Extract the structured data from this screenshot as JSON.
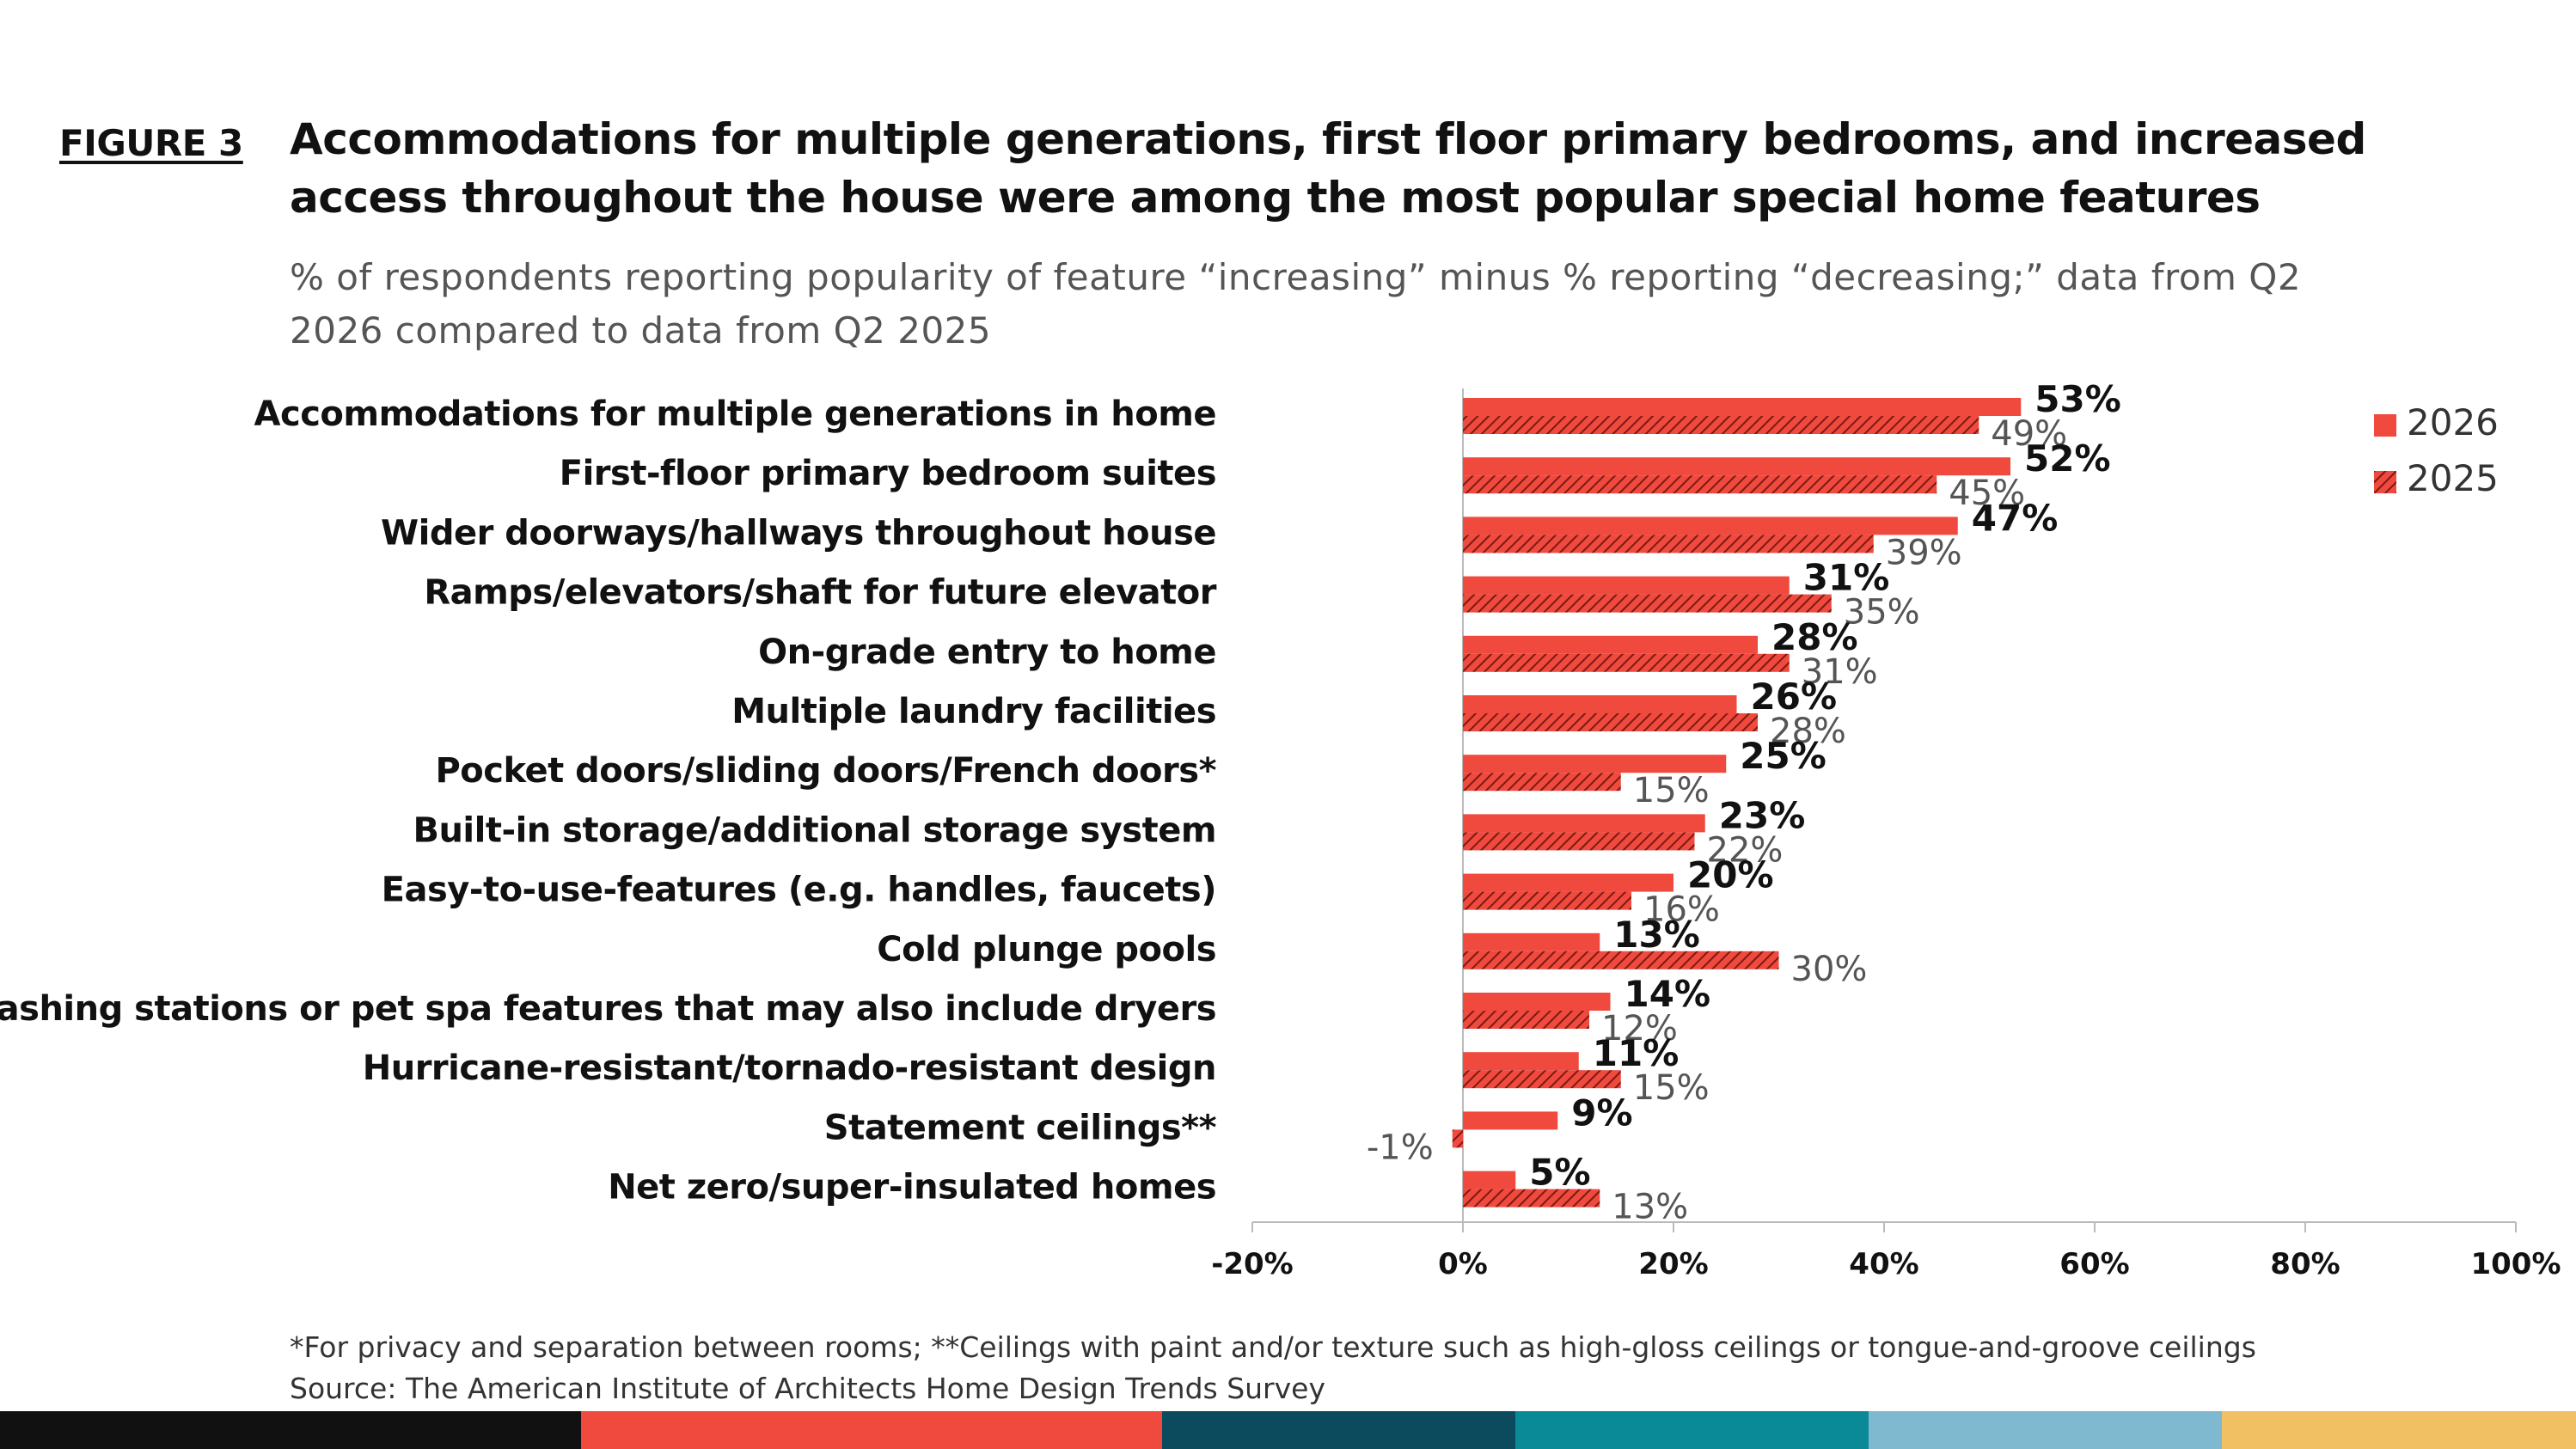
{
  "figure_label": "FIGURE 3",
  "title": "Accommodations for multiple generations, first floor primary bedrooms, and increased access throughout the house were among the most popular special home features",
  "subtitle": "% of respondents reporting popularity of feature “increasing” minus % reporting “decreasing;” data from Q2 2026 compared to data from Q2 2025",
  "footnote": "*For privacy and separation between rooms; **Ceilings with paint and/or texture such as high-gloss ceilings or tongue-and-groove ceilings",
  "source": "Source: The American Institute of Architects Home Design Trends Survey",
  "colors": {
    "bar_2026": "#f0493e",
    "bar_2025": "#f0493e",
    "bar_2025_hatch": "#7a1a14",
    "axis": "#bbbbbb",
    "strip": [
      "#111111",
      "#f0493e",
      "#0c4a5e",
      "#0a8a96",
      "#7fb9cf",
      "#f1c062"
    ]
  },
  "chart_data": {
    "type": "bar",
    "orientation": "horizontal",
    "categories": [
      "Accommodations for multiple generations in home",
      "First-floor primary bedroom suites",
      "Wider doorways/hallways throughout house",
      "Ramps/elevators/shaft for future elevator",
      "On-grade entry to home",
      "Multiple laundry facilities",
      "Pocket doors/sliding doors/French doors*",
      "Built-in storage/additional storage system",
      "Easy-to-use-features (e.g. handles, faucets)",
      "Cold plunge pools",
      "Pet washing stations or pet spa features that may also include dryers",
      "Hurricane-resistant/tornado-resistant design",
      "Statement ceilings**",
      "Net zero/super-insulated homes"
    ],
    "series": [
      {
        "name": "2026",
        "values": [
          53,
          52,
          47,
          31,
          28,
          26,
          25,
          23,
          20,
          13,
          14,
          11,
          9,
          5
        ],
        "labels": [
          "53%",
          "52%",
          "47%",
          "31%",
          "28%",
          "26%",
          "25%",
          "23%",
          "20%",
          "13%",
          "14%",
          "11%",
          "9%",
          "5%"
        ]
      },
      {
        "name": "2025",
        "values": [
          49,
          45,
          39,
          35,
          31,
          28,
          15,
          22,
          16,
          30,
          12,
          15,
          -1,
          13
        ],
        "labels": [
          "49%",
          "45%",
          "39%",
          "35%",
          "31%",
          "28%",
          "15%",
          "22%",
          "16%",
          "30%",
          "12%",
          "15%",
          "-1%",
          "13%"
        ]
      }
    ],
    "xlim": [
      -20,
      100
    ],
    "xticks": [
      -20,
      0,
      20,
      40,
      60,
      80,
      100
    ],
    "xtick_labels": [
      "-20%",
      "0%",
      "20%",
      "40%",
      "60%",
      "80%",
      "100%"
    ],
    "legend_position": "top-right",
    "grid": false
  }
}
